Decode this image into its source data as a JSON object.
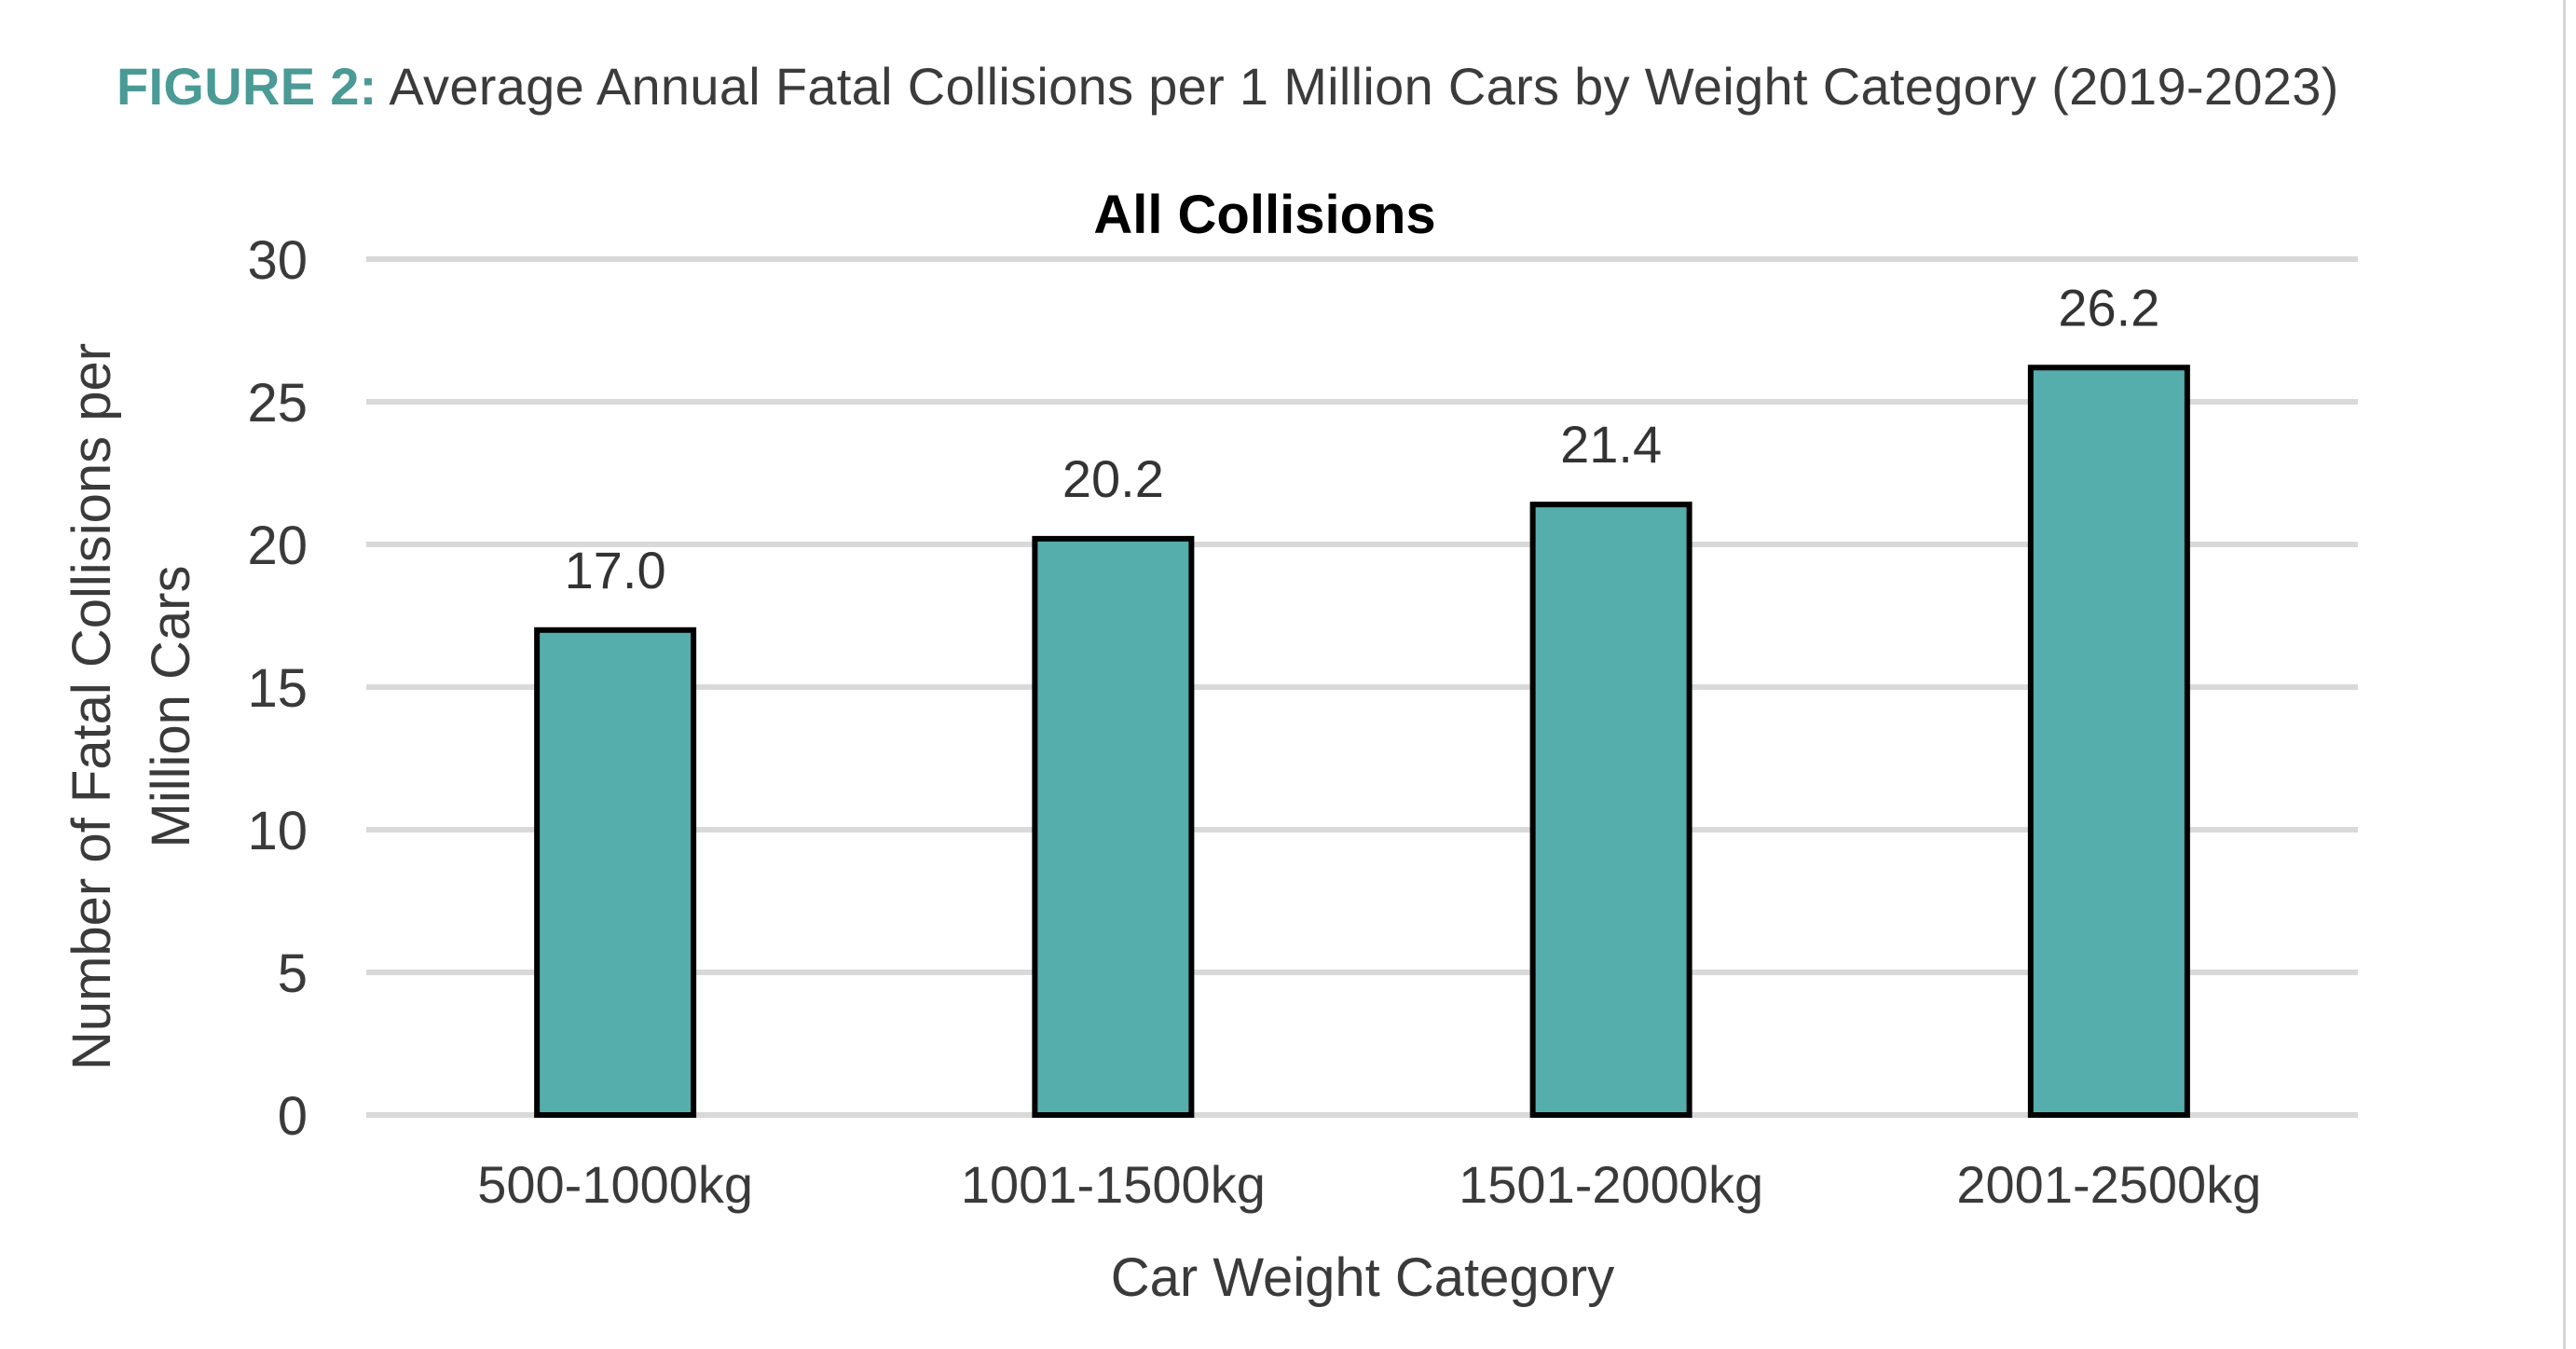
{
  "figure": {
    "label": "FIGURE 2:",
    "title": "Average Annual Fatal Collisions per 1 Million Cars by Weight Category (2019-2023)",
    "label_color": "#4a9a96"
  },
  "chart_data": {
    "type": "bar",
    "title": "All Collisions",
    "categories": [
      "500-1000kg",
      "1001-1500kg",
      "1501-2000kg",
      "2001-2500kg"
    ],
    "values": [
      17.0,
      20.2,
      21.4,
      26.2
    ],
    "data_labels": [
      "17.0",
      "20.2",
      "21.4",
      "26.2"
    ],
    "xlabel": "Car Weight Category",
    "ylabel_lines": [
      "Number of Fatal Collisions per",
      "Million Cars"
    ],
    "ylim": [
      0,
      30
    ],
    "yticks": [
      0,
      5,
      10,
      15,
      20,
      25,
      30
    ],
    "grid": true,
    "legend": "none",
    "bar_color": "#55aeac",
    "bar_edge_color": "#000000",
    "grid_color": "#d9d9d9"
  }
}
